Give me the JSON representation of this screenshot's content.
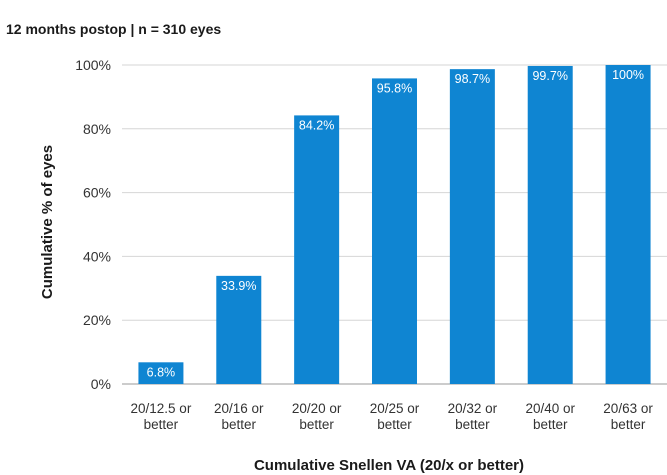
{
  "chart_data": {
    "type": "bar",
    "subtitle": "12 months postop | n = 310 eyes",
    "ylabel": "Cumulative % of eyes",
    "xlabel": "Cumulative Snellen VA (20/x or better)",
    "categories": [
      [
        "20/12.5 or",
        "better"
      ],
      [
        "20/16 or",
        "better"
      ],
      [
        "20/20 or",
        "better"
      ],
      [
        "20/25 or",
        "better"
      ],
      [
        "20/32 or",
        "better"
      ],
      [
        "20/40 or",
        "better"
      ],
      [
        "20/63 or",
        "better"
      ]
    ],
    "values": [
      6.8,
      33.9,
      84.2,
      95.8,
      98.7,
      99.7,
      100
    ],
    "data_labels": [
      "6.8%",
      "33.9%",
      "84.2%",
      "95.8%",
      "98.7%",
      "99.7%",
      "100%"
    ],
    "yticks": [
      0,
      20,
      40,
      60,
      80,
      100
    ],
    "ytick_labels": [
      "0%",
      "20%",
      "40%",
      "60%",
      "80%",
      "100%"
    ],
    "ylim": [
      0,
      100
    ],
    "grid": true,
    "bar_color": "#0f85d2"
  }
}
